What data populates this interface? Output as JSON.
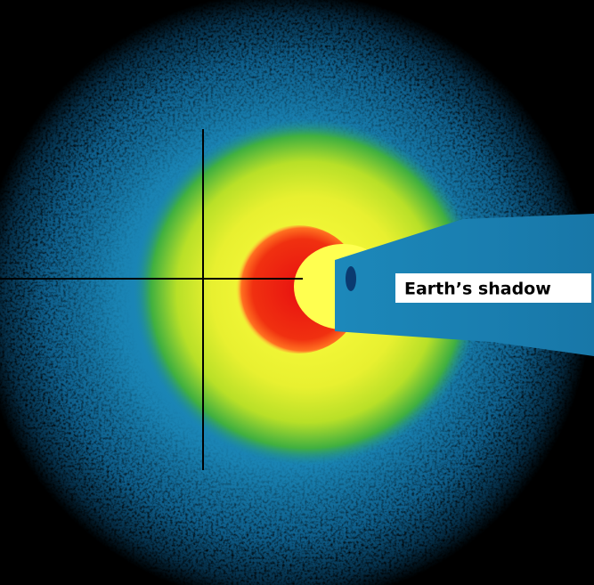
{
  "label": "Earth’s shadow"
}
